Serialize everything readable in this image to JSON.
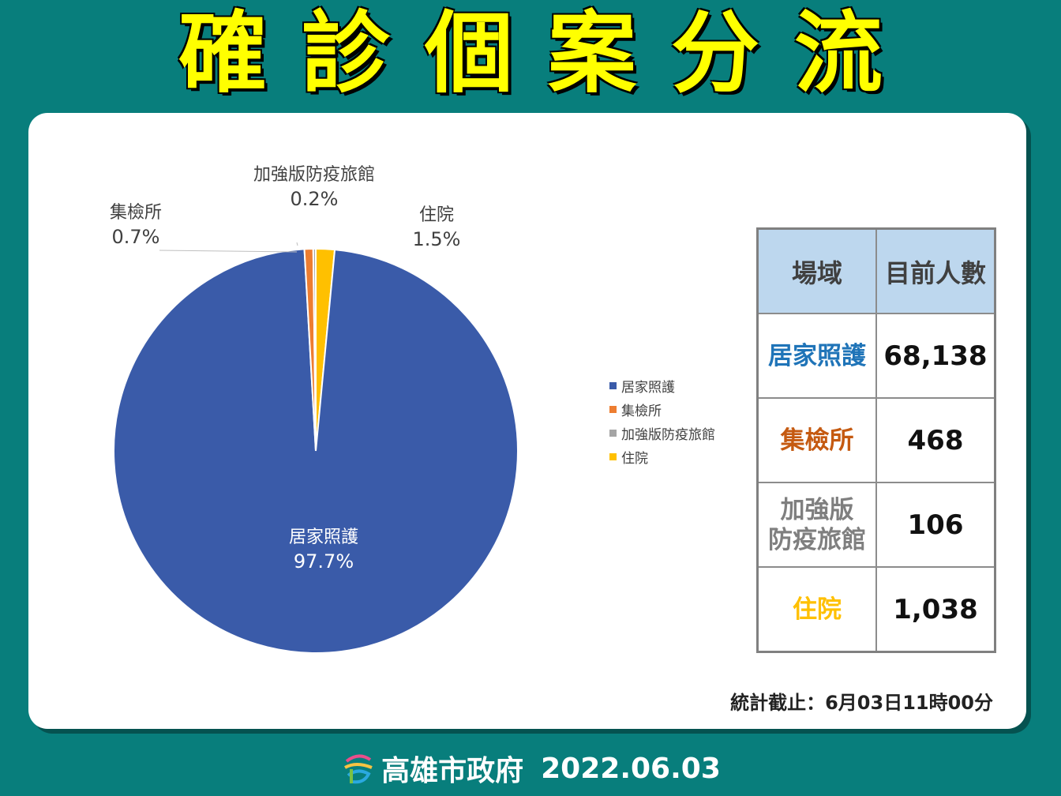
{
  "page": {
    "title": "確診個案分流",
    "footer_org": "高雄市政府",
    "footer_date": "2022.06.03",
    "note": "統計截止：6月03日11時00分"
  },
  "chart_data": {
    "type": "pie",
    "categories": [
      "居家照護",
      "集檢所",
      "加強版防疫旅館",
      "住院"
    ],
    "values": [
      97.7,
      0.7,
      0.2,
      1.5
    ],
    "value_labels": [
      "97.7%",
      "0.7%",
      "0.2%",
      "1.5%"
    ],
    "colors": [
      "#3a5ba9",
      "#ed7d31",
      "#a5a5a5",
      "#ffc000"
    ],
    "legend": "right"
  },
  "table": {
    "headers": [
      "場域",
      "目前人數"
    ],
    "rows": [
      {
        "name": "居家照護",
        "value": "68,138",
        "color": "#1f74b8"
      },
      {
        "name": "集檢所",
        "value": "468",
        "color": "#c55a11"
      },
      {
        "name": "加強版防疫旅館",
        "value": "106",
        "color": "#7f7f7f"
      },
      {
        "name": "住院",
        "value": "1,038",
        "color": "#ffc000"
      }
    ]
  },
  "icons": {
    "logo": "kaohsiung-logo-icon"
  }
}
